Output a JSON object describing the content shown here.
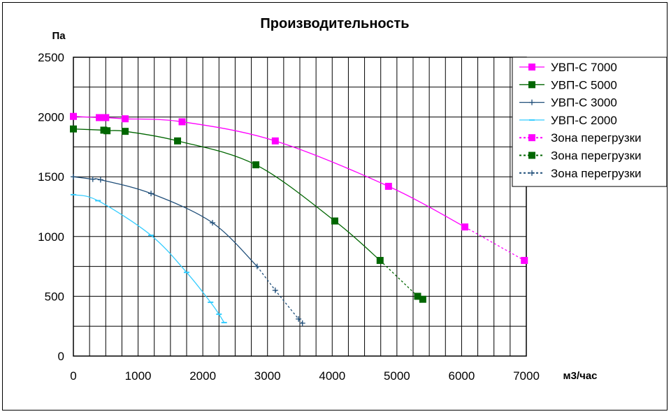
{
  "chart_data": {
    "type": "line",
    "title": "Производительность",
    "ylabel": "Па",
    "xlabel": "м3/час",
    "xlim": [
      0,
      7000
    ],
    "ylim": [
      0,
      2500
    ],
    "x_ticks": [
      "0",
      "1000",
      "2000",
      "3000",
      "4000",
      "5000",
      "6000",
      "7000"
    ],
    "y_ticks": [
      "0",
      "500",
      "1000",
      "1500",
      "2000",
      "2500"
    ],
    "grid": true,
    "legend_position": "right",
    "series": [
      {
        "name": "УВП-С 7000",
        "color": "#ff00ff",
        "marker": "square",
        "dash": false,
        "points": [
          [
            0,
            2005
          ],
          [
            400,
            1995
          ],
          [
            500,
            1995
          ],
          [
            800,
            1985
          ],
          [
            1680,
            1960
          ],
          [
            3120,
            1800
          ],
          [
            4870,
            1420
          ],
          [
            6050,
            1080
          ]
        ]
      },
      {
        "name": "УВП-С 5000",
        "color": "#006600",
        "marker": "square",
        "dash": false,
        "points": [
          [
            0,
            1900
          ],
          [
            470,
            1890
          ],
          [
            520,
            1885
          ],
          [
            800,
            1880
          ],
          [
            1610,
            1800
          ],
          [
            2820,
            1600
          ],
          [
            4040,
            1130
          ],
          [
            4740,
            800
          ]
        ]
      },
      {
        "name": "УВП-С 3000",
        "color": "#1f4e79",
        "marker": "plus",
        "dash": false,
        "points": [
          [
            0,
            1500
          ],
          [
            300,
            1480
          ],
          [
            420,
            1475
          ],
          [
            1200,
            1360
          ],
          [
            2150,
            1115
          ],
          [
            2840,
            750
          ]
        ]
      },
      {
        "name": "УВП-С 2000",
        "color": "#33ccff",
        "marker": "dash",
        "dash": false,
        "points": [
          [
            0,
            1350
          ],
          [
            380,
            1300
          ],
          [
            1200,
            1010
          ],
          [
            1750,
            700
          ],
          [
            2120,
            450
          ],
          [
            2250,
            350
          ],
          [
            2330,
            280
          ]
        ]
      },
      {
        "name": "Зона перегрузки",
        "color": "#ff00ff",
        "marker": "square",
        "dash": true,
        "points": [
          [
            6050,
            1080
          ],
          [
            6970,
            800
          ]
        ]
      },
      {
        "name": "Зона перегрузки",
        "color": "#006600",
        "marker": "square",
        "dash": true,
        "points": [
          [
            4740,
            800
          ],
          [
            5320,
            500
          ],
          [
            5400,
            475
          ]
        ]
      },
      {
        "name": "Зона перегрузки",
        "color": "#1f4e79",
        "marker": "plus",
        "dash": true,
        "points": [
          [
            2840,
            750
          ],
          [
            3120,
            550
          ],
          [
            3480,
            310
          ],
          [
            3540,
            275
          ]
        ]
      }
    ]
  }
}
